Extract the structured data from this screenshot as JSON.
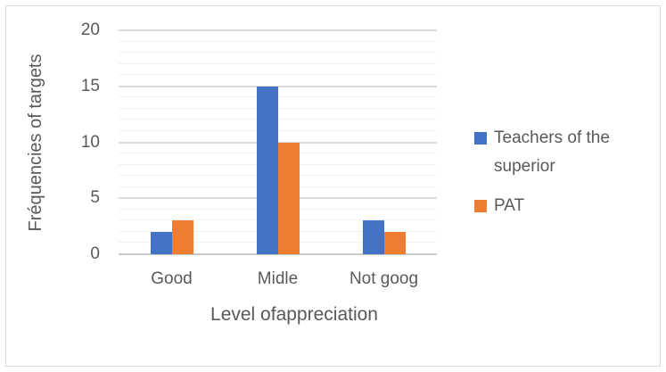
{
  "chart_data": {
    "type": "bar",
    "title": "",
    "categories": [
      "Good",
      "Midle",
      "Not goog"
    ],
    "series": [
      {
        "name": "Teachers of the superior",
        "color": "#4472C4",
        "values": [
          2,
          15,
          3
        ]
      },
      {
        "name": "PAT",
        "color": "#ED7D31",
        "values": [
          3,
          10,
          2
        ]
      }
    ],
    "xlabel": "Level ofappreciation",
    "ylabel": "Fréquencies of targets",
    "ylim": [
      0,
      20
    ],
    "yticks": [
      0,
      5,
      10,
      15,
      20
    ],
    "ytick_major_step": 5,
    "ytick_minor_step": 1,
    "grid": "horizontal major + minor",
    "legend_position": "right"
  },
  "colors": {
    "series_blue": "#4472C4",
    "series_orange": "#ED7D31",
    "text_gray": "#595959",
    "gridline_major": "#DBDBDB",
    "gridline_minor": "#F2F2F2",
    "axis_line": "#C9C9C9",
    "frame_border": "#D9D9D9"
  }
}
